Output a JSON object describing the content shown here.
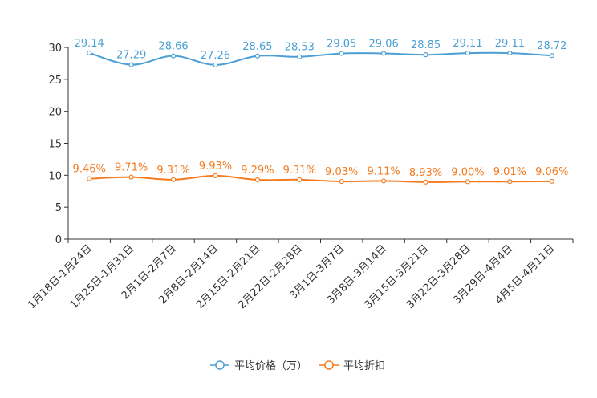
{
  "chart_data": {
    "type": "line",
    "title": "",
    "xlabel": "",
    "ylabel": "",
    "ylim": [
      0,
      30
    ],
    "yticks": [
      0,
      5,
      10,
      15,
      20,
      25,
      30
    ],
    "grid": false,
    "legend_position": "bottom-center",
    "categories": [
      "1月18日-1月24日",
      "1月25日-1月31日",
      "2月1日-2月7日",
      "2月8日-2月14日",
      "2月15日-2月21日",
      "2月22日-2月28日",
      "3月1日-3月7日",
      "3月8日-3月14日",
      "3月15日-3月21日",
      "3月22日-3月28日",
      "3月29日-4月4日",
      "4月5日-4月11日"
    ],
    "series": [
      {
        "name": "平均价格（万）",
        "color": "#4aa0d5",
        "values": [
          29.14,
          27.29,
          28.66,
          27.26,
          28.65,
          28.53,
          29.05,
          29.06,
          28.85,
          29.11,
          29.11,
          28.72
        ],
        "labels": [
          "29.14",
          "27.29",
          "28.66",
          "27.26",
          "28.65",
          "28.53",
          "29.05",
          "29.06",
          "28.85",
          "29.11",
          "29.11",
          "28.72"
        ]
      },
      {
        "name": "平均折扣",
        "color": "#f47b20",
        "values": [
          9.46,
          9.71,
          9.31,
          9.93,
          9.29,
          9.31,
          9.03,
          9.11,
          8.93,
          9.0,
          9.01,
          9.06
        ],
        "labels": [
          "9.46%",
          "9.71%",
          "9.31%",
          "9.93%",
          "9.29%",
          "9.31%",
          "9.03%",
          "9.11%",
          "8.93%",
          "9.00%",
          "9.01%",
          "9.06%"
        ]
      }
    ]
  }
}
